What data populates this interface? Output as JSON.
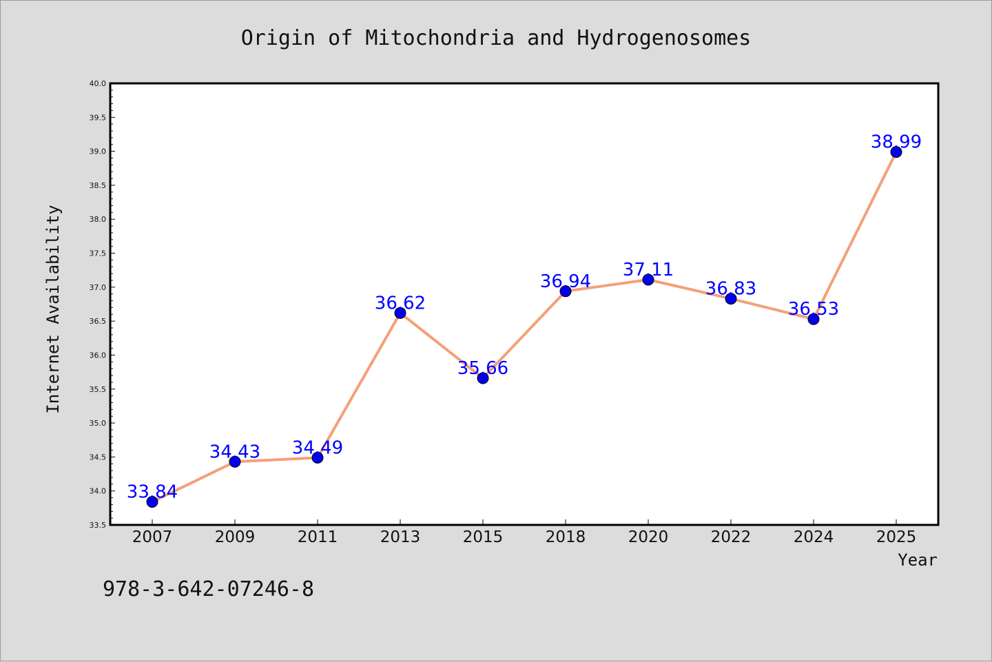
{
  "chart_data": {
    "type": "line",
    "title": "Origin of Mitochondria and Hydrogenosomes",
    "xlabel": "Year",
    "ylabel": "Internet Availability",
    "categories": [
      "2007",
      "2009",
      "2011",
      "2013",
      "2015",
      "2018",
      "2020",
      "2022",
      "2024",
      "2025"
    ],
    "series": [
      {
        "values": [
          33.84,
          34.43,
          34.49,
          36.62,
          35.66,
          36.94,
          37.11,
          36.83,
          36.53,
          38.99
        ]
      }
    ],
    "data_labels": [
      "33.84",
      "34.43",
      "34.49",
      "36.62",
      "35.66",
      "36.94",
      "37.11",
      "36.83",
      "36.53",
      "38.99"
    ],
    "ylim": [
      33.5,
      40.0
    ],
    "yticks": [
      "33.5",
      "34.0",
      "34.5",
      "35.0",
      "35.5",
      "36.0",
      "36.5",
      "37.0",
      "37.5",
      "38.0",
      "38.5",
      "39.0",
      "39.5",
      "40.0"
    ],
    "grid": false,
    "legend": "none",
    "colors": {
      "line": "#f4a07a",
      "marker": "#0000ee",
      "label": "#0000ff",
      "background": "#dcdcdc",
      "plot_area": "#ffffff"
    }
  },
  "footer": {
    "code": "978-3-642-07246-8"
  }
}
